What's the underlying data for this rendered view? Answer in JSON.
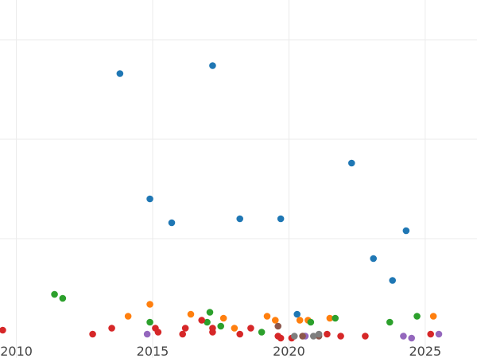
{
  "chart_data": {
    "type": "scatter",
    "title": "",
    "xlabel": "",
    "ylabel": "",
    "xlim": [
      2009.4,
      2026.9
    ],
    "ylim": [
      0,
      17
    ],
    "x_ticks": [
      2010,
      2015,
      2020,
      2025
    ],
    "x_tick_labels": [
      "2010",
      "2015",
      "2020",
      "2025"
    ],
    "y_gridlines": [
      5,
      10,
      15
    ],
    "grid": true,
    "legend": "none",
    "series": [
      {
        "color": "#1f77b4",
        "points": [
          {
            "x": 2013.8,
            "y": 13.3
          },
          {
            "x": 2017.2,
            "y": 13.7
          },
          {
            "x": 2014.9,
            "y": 7.0
          },
          {
            "x": 2015.7,
            "y": 5.8
          },
          {
            "x": 2018.2,
            "y": 6.0
          },
          {
            "x": 2019.7,
            "y": 6.0
          },
          {
            "x": 2022.3,
            "y": 8.8
          },
          {
            "x": 2024.3,
            "y": 5.4
          },
          {
            "x": 2023.1,
            "y": 4.0
          },
          {
            "x": 2023.8,
            "y": 2.9
          },
          {
            "x": 2020.3,
            "y": 1.2
          }
        ]
      },
      {
        "color": "#ff7f0e",
        "points": [
          {
            "x": 2014.1,
            "y": 1.1
          },
          {
            "x": 2014.9,
            "y": 1.7
          },
          {
            "x": 2016.4,
            "y": 1.2
          },
          {
            "x": 2017.6,
            "y": 1.0
          },
          {
            "x": 2018.0,
            "y": 0.5
          },
          {
            "x": 2019.2,
            "y": 1.1
          },
          {
            "x": 2019.5,
            "y": 0.9
          },
          {
            "x": 2020.4,
            "y": 0.9
          },
          {
            "x": 2020.7,
            "y": 0.9
          },
          {
            "x": 2021.5,
            "y": 1.0
          },
          {
            "x": 2025.3,
            "y": 1.1
          }
        ]
      },
      {
        "color": "#2ca02c",
        "points": [
          {
            "x": 2011.4,
            "y": 2.2
          },
          {
            "x": 2011.7,
            "y": 2.0
          },
          {
            "x": 2014.9,
            "y": 0.8
          },
          {
            "x": 2017.0,
            "y": 0.8
          },
          {
            "x": 2017.1,
            "y": 1.3
          },
          {
            "x": 2017.5,
            "y": 0.6
          },
          {
            "x": 2019.0,
            "y": 0.3
          },
          {
            "x": 2020.8,
            "y": 0.8
          },
          {
            "x": 2021.7,
            "y": 1.0
          },
          {
            "x": 2023.7,
            "y": 0.8
          },
          {
            "x": 2024.7,
            "y": 1.1
          }
        ]
      },
      {
        "color": "#d62728",
        "points": [
          {
            "x": 2009.5,
            "y": 0.4
          },
          {
            "x": 2012.8,
            "y": 0.2
          },
          {
            "x": 2013.5,
            "y": 0.5
          },
          {
            "x": 2015.1,
            "y": 0.5
          },
          {
            "x": 2015.2,
            "y": 0.3
          },
          {
            "x": 2016.1,
            "y": 0.2
          },
          {
            "x": 2016.2,
            "y": 0.5
          },
          {
            "x": 2016.8,
            "y": 0.9
          },
          {
            "x": 2017.2,
            "y": 0.5
          },
          {
            "x": 2017.2,
            "y": 0.3
          },
          {
            "x": 2018.2,
            "y": 0.2
          },
          {
            "x": 2018.6,
            "y": 0.5
          },
          {
            "x": 2019.6,
            "y": 0.1
          },
          {
            "x": 2019.7,
            "y": 0.0
          },
          {
            "x": 2020.1,
            "y": 0.0
          },
          {
            "x": 2021.4,
            "y": 0.2
          },
          {
            "x": 2021.9,
            "y": 0.1
          },
          {
            "x": 2022.8,
            "y": 0.1
          },
          {
            "x": 2025.2,
            "y": 0.2
          }
        ]
      },
      {
        "color": "#9467bd",
        "points": [
          {
            "x": 2014.8,
            "y": 0.2
          },
          {
            "x": 2020.6,
            "y": 0.1
          },
          {
            "x": 2024.2,
            "y": 0.1
          },
          {
            "x": 2024.5,
            "y": 0.0
          },
          {
            "x": 2025.5,
            "y": 0.2
          }
        ]
      },
      {
        "color": "#8c564b",
        "points": [
          {
            "x": 2019.6,
            "y": 0.6
          },
          {
            "x": 2020.5,
            "y": 0.1
          },
          {
            "x": 2021.1,
            "y": 0.1
          }
        ]
      },
      {
        "color": "#7f7f7f",
        "points": [
          {
            "x": 2020.2,
            "y": 0.1
          },
          {
            "x": 2020.9,
            "y": 0.1
          },
          {
            "x": 2021.1,
            "y": 0.2
          }
        ]
      }
    ]
  }
}
